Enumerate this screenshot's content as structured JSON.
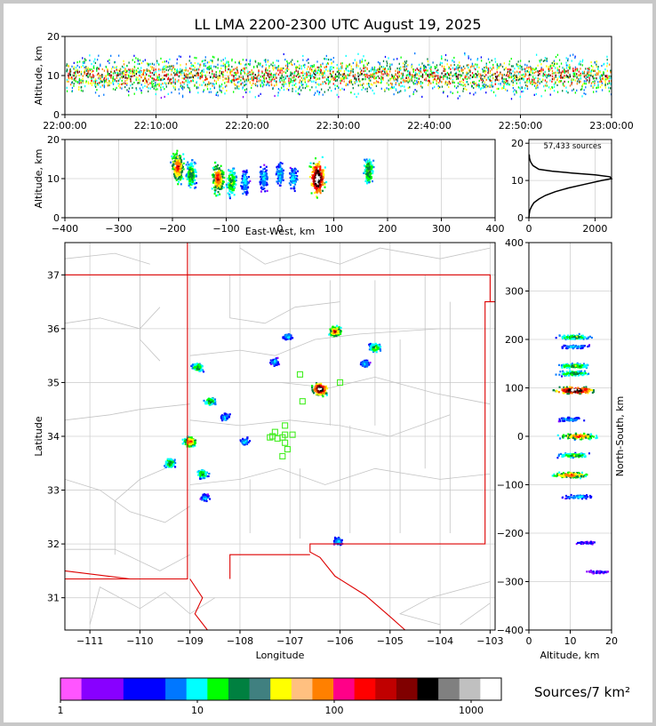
{
  "title": "LL LMA 2200-2300 UTC August 19, 2025",
  "chart_data": [
    {
      "type": "scatter",
      "panel": "altitude-time",
      "ylabel": "Altitude, km",
      "ylim": [
        0,
        20
      ],
      "yticks": [
        "0",
        "10",
        "20"
      ],
      "xticks": [
        "22:00:00",
        "22:10:00",
        "22:20:00",
        "22:30:00",
        "22:40:00",
        "22:50:00",
        "23:00:00"
      ],
      "source_altitude_band_km": [
        5,
        15
      ],
      "peak_altitude_km": 10
    },
    {
      "type": "scatter",
      "panel": "altitude-east-west",
      "xlabel": "East-West, km",
      "ylabel": "Altitude, km",
      "xlim": [
        -400,
        400
      ],
      "ylim": [
        0,
        20
      ],
      "xticks": [
        "−400",
        "−300",
        "−200",
        "−100",
        "0",
        "100",
        "200",
        "300",
        "400"
      ],
      "yticks": [
        "0",
        "10",
        "20"
      ],
      "clusters": [
        {
          "x": -190,
          "z": 13,
          "density": "high"
        },
        {
          "x": -165,
          "z": 11,
          "density": "medium"
        },
        {
          "x": -115,
          "z": 10,
          "density": "high"
        },
        {
          "x": -90,
          "z": 9,
          "density": "medium"
        },
        {
          "x": -65,
          "z": 9,
          "density": "low"
        },
        {
          "x": -30,
          "z": 10,
          "density": "low"
        },
        {
          "x": 0,
          "z": 11,
          "density": "low"
        },
        {
          "x": 25,
          "z": 10,
          "density": "low"
        },
        {
          "x": 70,
          "z": 10,
          "density": "very-high"
        },
        {
          "x": 165,
          "z": 12,
          "density": "medium"
        }
      ]
    },
    {
      "type": "line",
      "panel": "altitude-histogram",
      "annotation": "57,433 sources",
      "xlim": [
        0,
        2500
      ],
      "ylim": [
        0,
        21
      ],
      "xticks": [
        "0",
        "2000"
      ],
      "yticks": [
        "0",
        "10",
        "20"
      ],
      "x": [
        0,
        10,
        30,
        80,
        150,
        300,
        500,
        800,
        1200,
        1700,
        2200,
        2500,
        2450,
        2000,
        1300,
        700,
        300,
        120,
        50,
        20,
        10
      ],
      "y": [
        0,
        1,
        2,
        3,
        4,
        5,
        6,
        7,
        8,
        9,
        10,
        10.5,
        11,
        11.5,
        12,
        12.5,
        13,
        14,
        15,
        16,
        17
      ]
    },
    {
      "type": "scatter",
      "panel": "plan-view",
      "xlabel": "Longitude",
      "ylabel": "Latitude",
      "xlim": [
        -111.5,
        -102.9
      ],
      "ylim": [
        30.4,
        37.6
      ],
      "xticks": [
        "−111",
        "−110",
        "−109",
        "−108",
        "−107",
        "−106",
        "−105",
        "−104",
        "−103"
      ],
      "yticks": [
        "31",
        "32",
        "33",
        "34",
        "35",
        "36",
        "37"
      ],
      "storm_cells": [
        {
          "lon": -106.4,
          "lat": 34.88,
          "density": "very-high"
        },
        {
          "lon": -109.0,
          "lat": 33.9,
          "density": "high"
        },
        {
          "lon": -106.1,
          "lat": 35.95,
          "density": "high"
        },
        {
          "lon": -105.3,
          "lat": 35.65,
          "density": "medium"
        },
        {
          "lon": -108.6,
          "lat": 34.65,
          "density": "medium"
        },
        {
          "lon": -109.4,
          "lat": 33.5,
          "density": "medium"
        },
        {
          "lon": -108.75,
          "lat": 33.3,
          "density": "medium"
        },
        {
          "lon": -108.85,
          "lat": 35.28,
          "density": "medium"
        },
        {
          "lon": -107.05,
          "lat": 35.85,
          "density": "low"
        },
        {
          "lon": -107.3,
          "lat": 35.38,
          "density": "low"
        },
        {
          "lon": -108.3,
          "lat": 34.35,
          "density": "low"
        },
        {
          "lon": -107.9,
          "lat": 33.9,
          "density": "low"
        },
        {
          "lon": -108.7,
          "lat": 32.85,
          "density": "low"
        },
        {
          "lon": -106.05,
          "lat": 32.05,
          "density": "low"
        },
        {
          "lon": -105.5,
          "lat": 35.35,
          "density": "low"
        }
      ],
      "stations": [
        {
          "lon": -107.35,
          "lat": 34.0
        },
        {
          "lon": -107.3,
          "lat": 34.08
        },
        {
          "lon": -107.25,
          "lat": 33.96
        },
        {
          "lon": -107.1,
          "lat": 34.2
        },
        {
          "lon": -107.15,
          "lat": 33.98
        },
        {
          "lon": -107.1,
          "lat": 33.88
        },
        {
          "lon": -107.05,
          "lat": 33.76
        },
        {
          "lon": -107.15,
          "lat": 33.63
        },
        {
          "lon": -106.95,
          "lat": 34.03
        },
        {
          "lon": -107.1,
          "lat": 34.03
        },
        {
          "lon": -106.75,
          "lat": 34.65
        },
        {
          "lon": -106.8,
          "lat": 35.15
        },
        {
          "lon": -106.0,
          "lat": 35.0
        },
        {
          "lon": -107.4,
          "lat": 33.98
        }
      ],
      "station_color": "#44ee22"
    },
    {
      "type": "scatter",
      "panel": "north-south-altitude",
      "xlabel": "Altitude, km",
      "ylabel": "North-South, km",
      "xlim": [
        0,
        20
      ],
      "ylim": [
        -400,
        400
      ],
      "xticks": [
        "0",
        "10",
        "20"
      ],
      "yticks": [
        "−400",
        "−300",
        "−200",
        "−100",
        "0",
        "100",
        "200",
        "300",
        "400"
      ],
      "clusters": [
        {
          "y": 205,
          "z": 11,
          "density": "medium"
        },
        {
          "y": 185,
          "z": 11,
          "density": "low"
        },
        {
          "y": 145,
          "z": 11,
          "density": "medium"
        },
        {
          "y": 130,
          "z": 11,
          "density": "medium"
        },
        {
          "y": 95,
          "z": 11,
          "density": "very-high"
        },
        {
          "y": 35,
          "z": 10,
          "density": "low"
        },
        {
          "y": 0,
          "z": 12,
          "density": "high"
        },
        {
          "y": -40,
          "z": 11,
          "density": "medium"
        },
        {
          "y": -80,
          "z": 10,
          "density": "high"
        },
        {
          "y": -125,
          "z": 12,
          "density": "low"
        },
        {
          "y": -220,
          "z": 14,
          "density": "sparse"
        },
        {
          "y": -280,
          "z": 17,
          "density": "sparse"
        }
      ]
    },
    {
      "type": "colorbar",
      "panel": "colorbar",
      "label": "Sources/7 km²",
      "scale": "log",
      "ticks": [
        "1",
        "10",
        "100",
        "1000"
      ],
      "colors": [
        "#ff55ff",
        "#8800ff",
        "#8800ff",
        "#0000ff",
        "#0000ff",
        "#0077ff",
        "#00ffff",
        "#00ff00",
        "#008040",
        "#408080",
        "#ffff00",
        "#ffc080",
        "#ff8000",
        "#ff0088",
        "#ff0000",
        "#c00000",
        "#800000",
        "#000000",
        "#808080",
        "#c0c0c0",
        "#ffffff"
      ]
    }
  ]
}
